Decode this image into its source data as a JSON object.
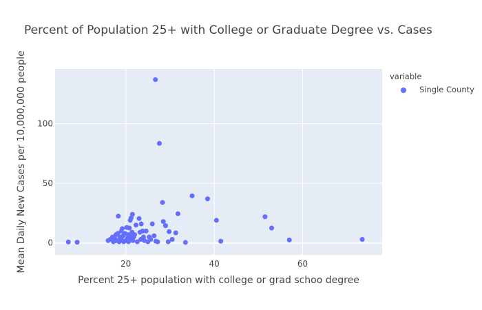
{
  "chart_data": {
    "type": "scatter",
    "title": "Percent of Population 25+ with College or Graduate Degree vs. Cases",
    "xlabel": "Percent 25+ population with college or grad schoo degree",
    "ylabel": "Mean Daily New Cases per 10,000,000 people",
    "xlim": [
      4,
      78
    ],
    "ylim": [
      -10,
      146
    ],
    "x_ticks": [
      20,
      40,
      60
    ],
    "y_ticks": [
      0,
      50,
      100
    ],
    "grid": true,
    "legend": {
      "title": "variable",
      "placement": "right"
    },
    "series": [
      {
        "name": "Single County",
        "color": "#636efa",
        "points": [
          {
            "x": 7,
            "y": 0.8
          },
          {
            "x": 9,
            "y": 0.6
          },
          {
            "x": 16,
            "y": 2
          },
          {
            "x": 16.5,
            "y": 3
          },
          {
            "x": 17,
            "y": 5
          },
          {
            "x": 17.2,
            "y": 1
          },
          {
            "x": 17.5,
            "y": 4
          },
          {
            "x": 17.8,
            "y": 7
          },
          {
            "x": 18,
            "y": 2
          },
          {
            "x": 18.2,
            "y": 8
          },
          {
            "x": 18.3,
            "y": 22.5
          },
          {
            "x": 18.5,
            "y": 1
          },
          {
            "x": 18.7,
            "y": 5
          },
          {
            "x": 19,
            "y": 10
          },
          {
            "x": 19,
            "y": 3
          },
          {
            "x": 19.2,
            "y": 12
          },
          {
            "x": 19.4,
            "y": 6
          },
          {
            "x": 19.5,
            "y": 1
          },
          {
            "x": 19.8,
            "y": 8
          },
          {
            "x": 20,
            "y": 2
          },
          {
            "x": 20.2,
            "y": 13
          },
          {
            "x": 20.4,
            "y": 4
          },
          {
            "x": 20.5,
            "y": 7
          },
          {
            "x": 20.6,
            "y": 1
          },
          {
            "x": 20.8,
            "y": 12.5
          },
          {
            "x": 21,
            "y": 19
          },
          {
            "x": 21,
            "y": 6
          },
          {
            "x": 21,
            "y": 3
          },
          {
            "x": 21.2,
            "y": 21
          },
          {
            "x": 21.4,
            "y": 9
          },
          {
            "x": 21.5,
            "y": 24
          },
          {
            "x": 21.6,
            "y": 2
          },
          {
            "x": 21.8,
            "y": 5
          },
          {
            "x": 22,
            "y": 7
          },
          {
            "x": 22.3,
            "y": 15
          },
          {
            "x": 22.6,
            "y": 1
          },
          {
            "x": 23,
            "y": 20.5
          },
          {
            "x": 23.2,
            "y": 9
          },
          {
            "x": 23.4,
            "y": 3
          },
          {
            "x": 23.5,
            "y": 16
          },
          {
            "x": 23.8,
            "y": 10
          },
          {
            "x": 24,
            "y": 5
          },
          {
            "x": 24.2,
            "y": 2
          },
          {
            "x": 24.6,
            "y": 10
          },
          {
            "x": 25,
            "y": 1
          },
          {
            "x": 25.3,
            "y": 5
          },
          {
            "x": 25.6,
            "y": 3
          },
          {
            "x": 26,
            "y": 16
          },
          {
            "x": 26.4,
            "y": 6
          },
          {
            "x": 26.7,
            "y": 137
          },
          {
            "x": 26.8,
            "y": 1.5
          },
          {
            "x": 27.2,
            "y": 1
          },
          {
            "x": 27.6,
            "y": 83.5
          },
          {
            "x": 28.3,
            "y": 34
          },
          {
            "x": 28.5,
            "y": 18
          },
          {
            "x": 29,
            "y": 14.5
          },
          {
            "x": 29.6,
            "y": 1
          },
          {
            "x": 29.8,
            "y": 9.5
          },
          {
            "x": 30.5,
            "y": 3
          },
          {
            "x": 31.3,
            "y": 8.5
          },
          {
            "x": 31.8,
            "y": 24.5
          },
          {
            "x": 33.5,
            "y": 0.5
          },
          {
            "x": 35,
            "y": 39.5
          },
          {
            "x": 38.5,
            "y": 37
          },
          {
            "x": 40.5,
            "y": 19
          },
          {
            "x": 41.5,
            "y": 1.5
          },
          {
            "x": 51.5,
            "y": 22
          },
          {
            "x": 53,
            "y": 12.5
          },
          {
            "x": 57,
            "y": 2.5
          },
          {
            "x": 73.5,
            "y": 3
          }
        ]
      }
    ]
  }
}
